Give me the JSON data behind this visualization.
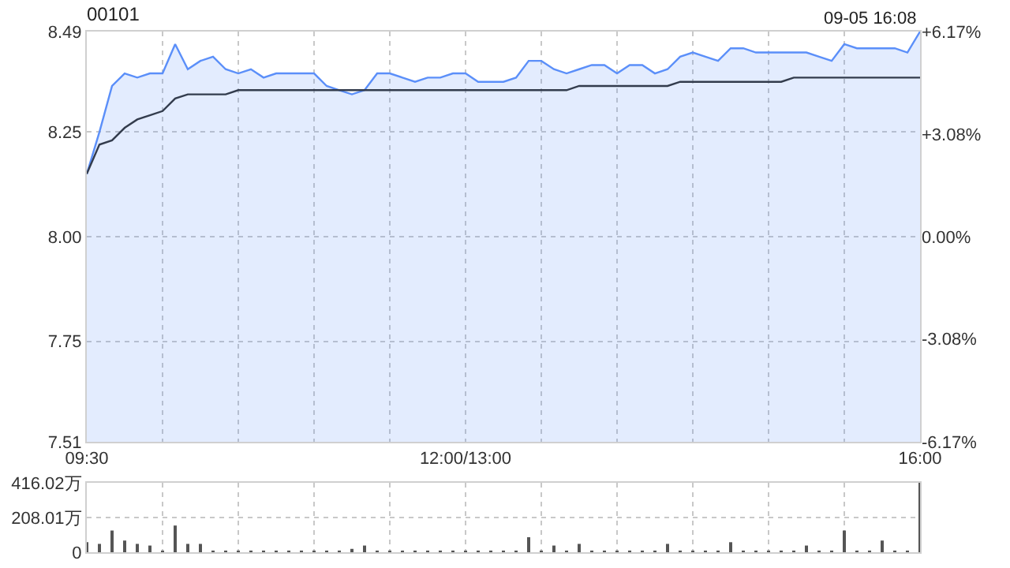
{
  "chart_data": [
    {
      "type": "line",
      "title": "00101",
      "annotations": [
        "09-05 16:08"
      ],
      "categories": [
        "09:30",
        null,
        null,
        null,
        null,
        null,
        null,
        null,
        null,
        null,
        null,
        null,
        null,
        null,
        null,
        null,
        null,
        null,
        null,
        null,
        null,
        null,
        null,
        null,
        null,
        null,
        null,
        null,
        null,
        null,
        "12:00/13:00",
        null,
        null,
        null,
        null,
        null,
        null,
        null,
        null,
        null,
        null,
        null,
        null,
        null,
        null,
        null,
        null,
        null,
        null,
        null,
        null,
        null,
        null,
        null,
        null,
        null,
        null,
        null,
        null,
        null,
        null,
        null,
        null,
        null,
        null,
        null,
        "16:00"
      ],
      "ylim": [
        7.51,
        8.49
      ],
      "yticks": [
        7.51,
        7.75,
        {
          "value": 8,
          "label": "8.00"
        },
        8.25,
        8.49
      ],
      "y2lim": [
        -6.17,
        6.17
      ],
      "y2ticks": [
        {
          "value": -6.17,
          "label": "-6.17%"
        },
        {
          "value": -3.08,
          "label": "-3.08%"
        },
        {
          "value": 0,
          "label": "0.00%"
        },
        {
          "value": 3.08,
          "label": "+3.08%"
        },
        {
          "value": 6.17,
          "label": "+6.17%"
        }
      ],
      "grid": true,
      "series": [
        {
          "type": "area",
          "color": "#5b8ff9",
          "values": [
            8.15,
            8.25,
            8.36,
            8.39,
            8.38,
            8.39,
            8.39,
            8.46,
            8.4,
            8.42,
            8.43,
            8.4,
            8.39,
            8.4,
            8.38,
            8.39,
            8.39,
            8.39,
            8.39,
            8.36,
            8.35,
            8.34,
            8.35,
            8.39,
            8.39,
            8.38,
            8.37,
            8.38,
            8.38,
            8.39,
            8.39,
            8.37,
            8.37,
            8.37,
            8.38,
            8.42,
            8.42,
            8.4,
            8.39,
            8.4,
            8.41,
            8.41,
            8.39,
            8.41,
            8.41,
            8.39,
            8.4,
            8.43,
            8.44,
            8.43,
            8.42,
            8.45,
            8.45,
            8.44,
            8.44,
            8.44,
            8.44,
            8.44,
            8.43,
            8.42,
            8.46,
            8.45,
            8.45,
            8.45,
            8.45,
            8.44,
            8.49
          ]
        },
        {
          "color": "#333c4d",
          "values": [
            8.15,
            8.22,
            8.23,
            8.26,
            8.28,
            8.29,
            8.3,
            8.33,
            8.34,
            8.34,
            8.34,
            8.34,
            8.35,
            8.35,
            8.35,
            8.35,
            8.35,
            8.35,
            8.35,
            8.35,
            8.35,
            8.35,
            8.35,
            8.35,
            8.35,
            8.35,
            8.35,
            8.35,
            8.35,
            8.35,
            8.35,
            8.35,
            8.35,
            8.35,
            8.35,
            8.35,
            8.35,
            8.35,
            8.35,
            8.36,
            8.36,
            8.36,
            8.36,
            8.36,
            8.36,
            8.36,
            8.36,
            8.37,
            8.37,
            8.37,
            8.37,
            8.37,
            8.37,
            8.37,
            8.37,
            8.37,
            8.38,
            8.38,
            8.38,
            8.38,
            8.38,
            8.38,
            8.38,
            8.38,
            8.38,
            8.38,
            8.38
          ]
        }
      ]
    },
    {
      "type": "bar",
      "color": "#555555",
      "tick_labels": "y",
      "grid": true,
      "categories": [
        null,
        null,
        null,
        null,
        null,
        null,
        null,
        null,
        null,
        null,
        null,
        null,
        null,
        null,
        null,
        null,
        null,
        null,
        null,
        null,
        null,
        null,
        null,
        null,
        null,
        null,
        null,
        null,
        null,
        null,
        null,
        null,
        null,
        null,
        null,
        null,
        null,
        null,
        null,
        null,
        null,
        null,
        null,
        null,
        null,
        null,
        null,
        null,
        null,
        null,
        null,
        null,
        null,
        null,
        null,
        null,
        null,
        null,
        null,
        null,
        null,
        null,
        null,
        null,
        null,
        null,
        null
      ],
      "ylim": [
        0,
        416.02
      ],
      "yticks": [
        0,
        {
          "value": 208.01,
          "label": "208.01万"
        },
        {
          "value": 416.02,
          "label": "416.02万"
        }
      ],
      "values": [
        60,
        50,
        130,
        70,
        50,
        40,
        10,
        160,
        50,
        50,
        10,
        10,
        10,
        10,
        10,
        10,
        10,
        10,
        10,
        10,
        10,
        20,
        40,
        10,
        10,
        10,
        10,
        10,
        10,
        10,
        10,
        10,
        10,
        10,
        10,
        90,
        10,
        40,
        10,
        50,
        10,
        10,
        10,
        10,
        10,
        10,
        50,
        10,
        10,
        10,
        10,
        60,
        10,
        10,
        10,
        10,
        10,
        40,
        10,
        10,
        130,
        10,
        10,
        70,
        10,
        10,
        416
      ]
    }
  ]
}
